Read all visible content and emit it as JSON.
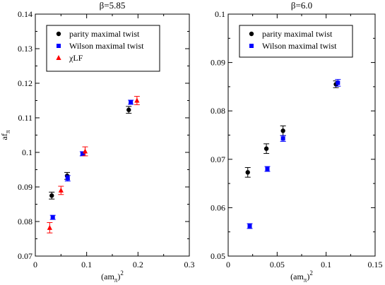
{
  "chart_data": [
    {
      "type": "scatter",
      "title": "β=5.85",
      "xlabel": "(am_π)^2",
      "ylabel": "af_π",
      "xlim": [
        0,
        0.3
      ],
      "ylim": [
        0.07,
        0.14
      ],
      "xticks": [
        "0",
        "0.1",
        "0.2",
        "0.3"
      ],
      "yticks": [
        "0.07",
        "0.08",
        "0.09",
        "0.1",
        "0.11",
        "0.12",
        "0.13",
        "0.14"
      ],
      "legend_position": "top",
      "series": [
        {
          "name": "parity maximal twist",
          "marker": "circle",
          "color": "#000000",
          "points": [
            {
              "x": 0.032,
              "y": 0.0875,
              "err": 0.001
            },
            {
              "x": 0.062,
              "y": 0.0932,
              "err": 0.001
            },
            {
              "x": 0.182,
              "y": 0.1123,
              "err": 0.001
            }
          ]
        },
        {
          "name": "Wilson maximal twist",
          "marker": "square",
          "color": "#0000ff",
          "points": [
            {
              "x": 0.034,
              "y": 0.0812,
              "err": 0.0006
            },
            {
              "x": 0.063,
              "y": 0.0925,
              "err": 0.0008
            },
            {
              "x": 0.092,
              "y": 0.0996,
              "err": 0.0006
            },
            {
              "x": 0.186,
              "y": 0.1145,
              "err": 0.0006
            }
          ]
        },
        {
          "name": "χLF",
          "marker": "triangle",
          "color": "#ff0000",
          "points": [
            {
              "x": 0.028,
              "y": 0.0782,
              "err": 0.0015
            },
            {
              "x": 0.05,
              "y": 0.089,
              "err": 0.0012
            },
            {
              "x": 0.097,
              "y": 0.1003,
              "err": 0.0013
            },
            {
              "x": 0.198,
              "y": 0.115,
              "err": 0.0012
            }
          ]
        }
      ]
    },
    {
      "type": "scatter",
      "title": "β=6.0",
      "xlabel": "(am_π)^2",
      "ylabel": "",
      "xlim": [
        0,
        0.15
      ],
      "ylim": [
        0.05,
        0.1
      ],
      "xticks": [
        "0",
        "0.05",
        "0.1",
        "0.15"
      ],
      "yticks": [
        "0.05",
        "0.06",
        "0.07",
        "0.08",
        "0.09",
        "0.1"
      ],
      "legend_position": "top",
      "series": [
        {
          "name": "parity maximal twist",
          "marker": "circle",
          "color": "#000000",
          "points": [
            {
              "x": 0.02,
              "y": 0.0673,
              "err": 0.001
            },
            {
              "x": 0.039,
              "y": 0.0722,
              "err": 0.001
            },
            {
              "x": 0.056,
              "y": 0.0759,
              "err": 0.001
            },
            {
              "x": 0.11,
              "y": 0.0855,
              "err": 0.0007
            }
          ]
        },
        {
          "name": "Wilson maximal twist",
          "marker": "square",
          "color": "#0000ff",
          "points": [
            {
              "x": 0.022,
              "y": 0.0562,
              "err": 0.0005
            },
            {
              "x": 0.04,
              "y": 0.068,
              "err": 0.0005
            },
            {
              "x": 0.056,
              "y": 0.0743,
              "err": 0.0006
            },
            {
              "x": 0.112,
              "y": 0.0858,
              "err": 0.0007
            }
          ]
        }
      ]
    }
  ]
}
